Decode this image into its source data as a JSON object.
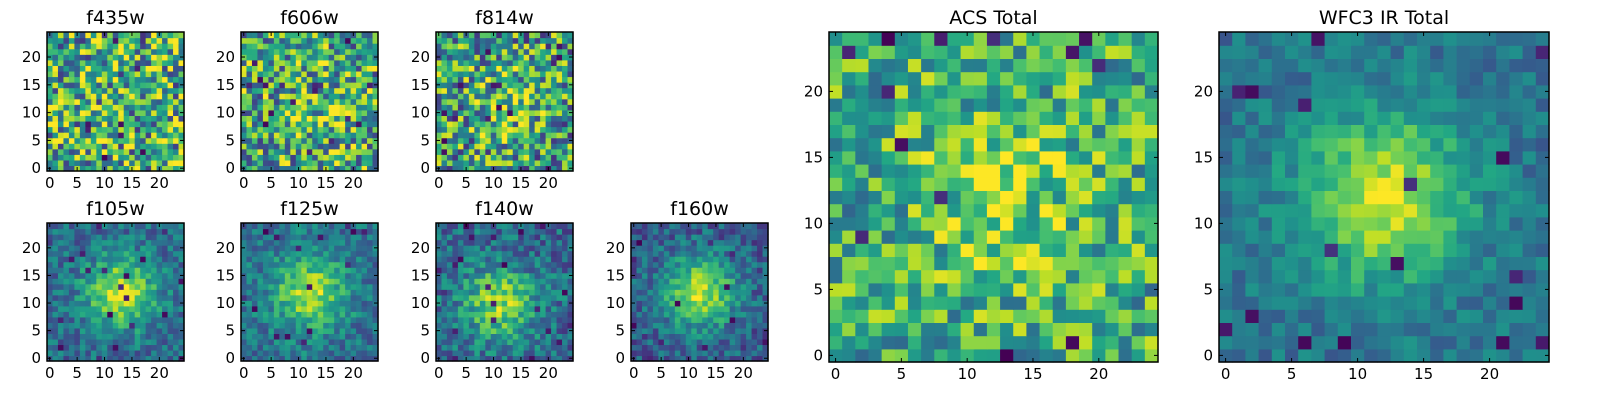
{
  "chart_data": [
    {
      "type": "heatmap",
      "title": "f435w",
      "colormap": "viridis",
      "grid": false,
      "xlim": [
        0,
        25
      ],
      "ylim": [
        0,
        25
      ],
      "xticks": [
        0,
        5,
        10,
        15,
        20
      ],
      "xtick_labels": [
        "0",
        "5",
        "10",
        "15",
        "20"
      ],
      "yticks": [
        0,
        5,
        10,
        15,
        20
      ],
      "ytick_labels": [
        "0",
        "5",
        "10",
        "15",
        "20"
      ],
      "pattern": "noise",
      "peak": [
        12,
        12
      ],
      "signal": 0.0,
      "noise": 0.9,
      "base": 0.62,
      "seed": 11
    },
    {
      "type": "heatmap",
      "title": "f606w",
      "colormap": "viridis",
      "grid": false,
      "xlim": [
        0,
        25
      ],
      "ylim": [
        0,
        25
      ],
      "xticks": [
        0,
        5,
        10,
        15,
        20
      ],
      "xtick_labels": [
        "0",
        "5",
        "10",
        "15",
        "20"
      ],
      "yticks": [
        0,
        5,
        10,
        15,
        20
      ],
      "ytick_labels": [
        "0",
        "5",
        "10",
        "15",
        "20"
      ],
      "pattern": "noise",
      "peak": [
        13,
        10
      ],
      "signal": 0.12,
      "noise": 0.85,
      "base": 0.6,
      "seed": 23
    },
    {
      "type": "heatmap",
      "title": "f814w",
      "colormap": "viridis",
      "grid": false,
      "xlim": [
        0,
        25
      ],
      "ylim": [
        0,
        25
      ],
      "xticks": [
        0,
        5,
        10,
        15,
        20
      ],
      "xtick_labels": [
        "0",
        "5",
        "10",
        "15",
        "20"
      ],
      "yticks": [
        0,
        5,
        10,
        15,
        20
      ],
      "ytick_labels": [
        "0",
        "5",
        "10",
        "15",
        "20"
      ],
      "pattern": "noise",
      "peak": [
        12,
        12
      ],
      "signal": 0.18,
      "noise": 0.85,
      "base": 0.55,
      "seed": 37
    },
    {
      "type": "heatmap",
      "title": "f105w",
      "colormap": "viridis",
      "grid": false,
      "xlim": [
        0,
        25
      ],
      "ylim": [
        0,
        25
      ],
      "xticks": [
        0,
        5,
        10,
        15,
        20
      ],
      "xtick_labels": [
        "0",
        "5",
        "10",
        "15",
        "20"
      ],
      "yticks": [
        0,
        5,
        10,
        15,
        20
      ],
      "ytick_labels": [
        "0",
        "5",
        "10",
        "15",
        "20"
      ],
      "pattern": "source",
      "peak": [
        13,
        12
      ],
      "signal": 0.55,
      "noise": 0.35,
      "base": 0.35,
      "seed": 41
    },
    {
      "type": "heatmap",
      "title": "f125w",
      "colormap": "viridis",
      "grid": false,
      "xlim": [
        0,
        25
      ],
      "ylim": [
        0,
        25
      ],
      "xticks": [
        0,
        5,
        10,
        15,
        20
      ],
      "xtick_labels": [
        "0",
        "5",
        "10",
        "15",
        "20"
      ],
      "yticks": [
        0,
        5,
        10,
        15,
        20
      ],
      "ytick_labels": [
        "0",
        "5",
        "10",
        "15",
        "20"
      ],
      "pattern": "source",
      "peak": [
        12,
        12
      ],
      "signal": 0.5,
      "noise": 0.35,
      "base": 0.38,
      "seed": 53
    },
    {
      "type": "heatmap",
      "title": "f140w",
      "colormap": "viridis",
      "grid": false,
      "xlim": [
        0,
        25
      ],
      "ylim": [
        0,
        25
      ],
      "xticks": [
        0,
        5,
        10,
        15,
        20
      ],
      "xtick_labels": [
        "0",
        "5",
        "10",
        "15",
        "20"
      ],
      "yticks": [
        0,
        5,
        10,
        15,
        20
      ],
      "ytick_labels": [
        "0",
        "5",
        "10",
        "15",
        "20"
      ],
      "pattern": "source",
      "peak": [
        11,
        10
      ],
      "signal": 0.5,
      "noise": 0.4,
      "base": 0.35,
      "seed": 67
    },
    {
      "type": "heatmap",
      "title": "f160w",
      "colormap": "viridis",
      "grid": false,
      "xlim": [
        0,
        25
      ],
      "ylim": [
        0,
        25
      ],
      "xticks": [
        0,
        5,
        10,
        15,
        20
      ],
      "xtick_labels": [
        "0",
        "5",
        "10",
        "15",
        "20"
      ],
      "yticks": [
        0,
        5,
        10,
        15,
        20
      ],
      "ytick_labels": [
        "0",
        "5",
        "10",
        "15",
        "20"
      ],
      "pattern": "source",
      "peak": [
        12,
        12
      ],
      "signal": 0.6,
      "noise": 0.35,
      "base": 0.3,
      "seed": 79
    },
    {
      "type": "heatmap",
      "title": "ACS Total",
      "colormap": "viridis",
      "grid": false,
      "xlim": [
        0,
        25
      ],
      "ylim": [
        0,
        25
      ],
      "xticks": [
        0,
        5,
        10,
        15,
        20
      ],
      "xtick_labels": [
        "0",
        "5",
        "10",
        "15",
        "20"
      ],
      "yticks": [
        0,
        5,
        10,
        15,
        20
      ],
      "ytick_labels": [
        "0",
        "5",
        "10",
        "15",
        "20"
      ],
      "pattern": "noise",
      "peak": [
        13,
        12
      ],
      "signal": 0.2,
      "noise": 0.6,
      "base": 0.62,
      "seed": 97
    },
    {
      "type": "heatmap",
      "title": "WFC3 IR Total",
      "colormap": "viridis",
      "grid": false,
      "xlim": [
        0,
        25
      ],
      "ylim": [
        0,
        25
      ],
      "xticks": [
        0,
        5,
        10,
        15,
        20
      ],
      "xtick_labels": [
        "0",
        "5",
        "10",
        "15",
        "20"
      ],
      "yticks": [
        0,
        5,
        10,
        15,
        20
      ],
      "ytick_labels": [
        "0",
        "5",
        "10",
        "15",
        "20"
      ],
      "pattern": "source",
      "peak": [
        12,
        12
      ],
      "signal": 0.55,
      "noise": 0.25,
      "base": 0.38,
      "seed": 113
    }
  ]
}
